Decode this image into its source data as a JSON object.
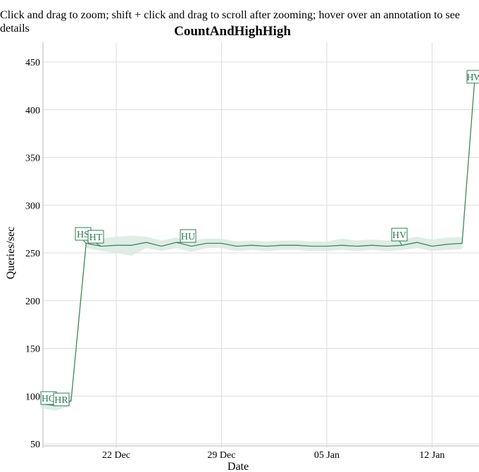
{
  "header": {
    "instructions": "Click and drag to zoom; shift + click and drag to scroll after zooming; hover over an annotation to see details"
  },
  "colors": {
    "line": "#3d8a5f",
    "band": "#dbe9e2",
    "grid": "#dcdcdc",
    "annotation": "#2e7d52"
  },
  "chart_data": {
    "type": "line",
    "title": "CountAndHighHigh",
    "xlabel": "Date",
    "ylabel": "Queries/sec",
    "ylim": [
      45,
      470
    ],
    "yticks": [
      50,
      100,
      150,
      200,
      250,
      300,
      350,
      400,
      450
    ],
    "xticks": [
      "22 Dec",
      "29 Dec",
      "05 Jan",
      "12 Jan"
    ],
    "grid": true,
    "legend": null,
    "series": [
      {
        "name": "Queries/sec",
        "x": [
          "17 Dec",
          "18 Dec",
          "19 Dec",
          "20 Dec",
          "21 Dec",
          "22 Dec",
          "23 Dec",
          "24 Dec",
          "25 Dec",
          "26 Dec",
          "27 Dec",
          "28 Dec",
          "29 Dec",
          "30 Dec",
          "31 Dec",
          "01 Jan",
          "02 Jan",
          "03 Jan",
          "04 Jan",
          "05 Jan",
          "06 Jan",
          "07 Jan",
          "08 Jan",
          "09 Jan",
          "10 Jan",
          "11 Jan",
          "12 Jan",
          "13 Jan",
          "14 Jan",
          "15 Jan"
        ],
        "values": [
          92,
          90,
          95,
          260,
          257,
          258,
          258,
          261,
          257,
          261,
          257,
          260,
          260,
          257,
          258,
          257,
          258,
          258,
          257,
          257,
          258,
          257,
          258,
          257,
          258,
          261,
          257,
          259,
          260,
          433
        ],
        "band_low": [
          87,
          85,
          90,
          255,
          252,
          250,
          247,
          255,
          252,
          255,
          251,
          255,
          255,
          252,
          253,
          252,
          253,
          253,
          252,
          252,
          253,
          252,
          253,
          252,
          253,
          255,
          252,
          253,
          254,
          433
        ],
        "band_high": [
          97,
          95,
          100,
          265,
          265,
          267,
          268,
          267,
          263,
          266,
          263,
          265,
          265,
          262,
          263,
          262,
          263,
          263,
          262,
          262,
          265,
          263,
          264,
          263,
          264,
          267,
          264,
          266,
          267,
          433
        ]
      }
    ],
    "annotations": [
      {
        "label": "HQ",
        "x": "17 Dec",
        "value": 92
      },
      {
        "label": "HR",
        "x": "19 Dec",
        "value": 95
      },
      {
        "label": "HS",
        "x": "20 Dec",
        "value": 260
      },
      {
        "label": "HT",
        "x": "21 Dec",
        "value": 257
      },
      {
        "label": "HU",
        "x": "26 Dec",
        "value": 261
      },
      {
        "label": "HV",
        "x": "10 Jan",
        "value": 258
      },
      {
        "label": "HW",
        "x": "15 Jan",
        "value": 433
      }
    ]
  }
}
